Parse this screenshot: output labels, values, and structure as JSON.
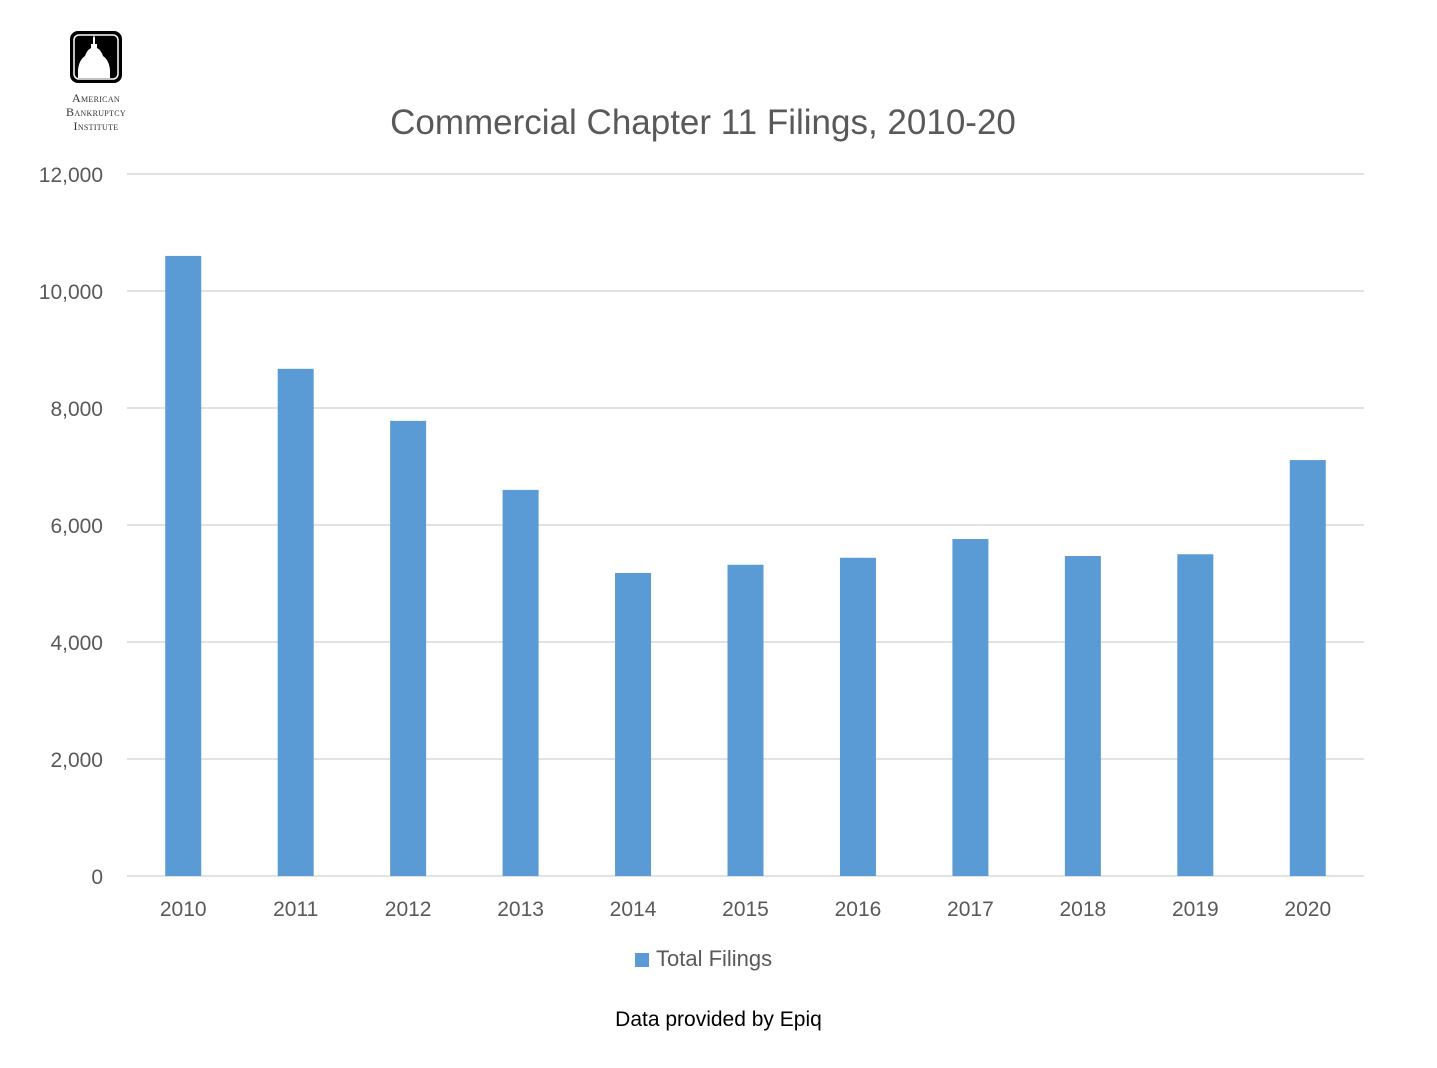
{
  "logo": {
    "lines": [
      "American",
      "Bankruptcy",
      "Institute"
    ]
  },
  "credit": "Data provided by Epiq",
  "colors": {
    "bar": "#5B9BD5",
    "grid": "#D9D9D9",
    "text": "#595959"
  },
  "chart_data": {
    "type": "bar",
    "title": "Commercial Chapter 11 Filings, 2010-20",
    "categories": [
      "2010",
      "2011",
      "2012",
      "2013",
      "2014",
      "2015",
      "2016",
      "2017",
      "2018",
      "2019",
      "2020"
    ],
    "series": [
      {
        "name": "Total Filings",
        "values": [
          10600,
          8670,
          7780,
          6600,
          5180,
          5320,
          5440,
          5760,
          5470,
          5500,
          7110
        ]
      }
    ],
    "ylim": [
      0,
      12000
    ],
    "yticks": [
      0,
      2000,
      4000,
      6000,
      8000,
      10000,
      12000
    ],
    "ytick_labels": [
      "0",
      "2,000",
      "4,000",
      "6,000",
      "8,000",
      "10,000",
      "12,000"
    ],
    "xlabel": "",
    "ylabel": "",
    "grid": true,
    "legend": "bottom-center"
  }
}
